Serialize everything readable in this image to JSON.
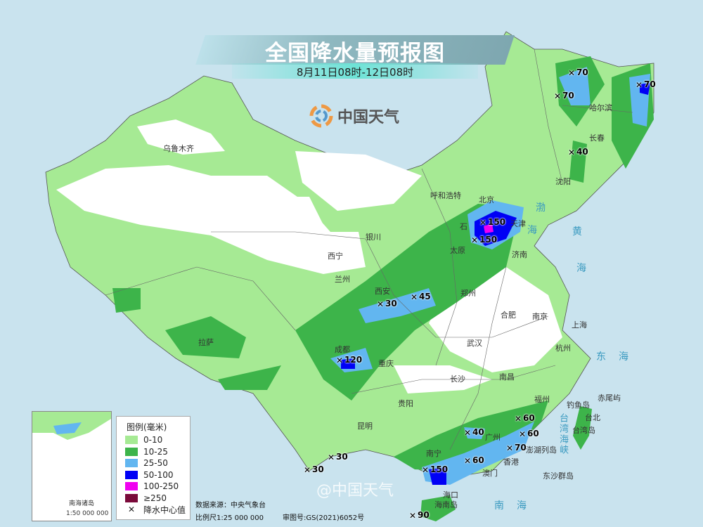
{
  "title": "全国降水量预报图",
  "subtitle": "8月11日08时-12日08时",
  "brand": "中国天气",
  "watermark": "@中国天气",
  "legend": {
    "title": "图例(毫米)",
    "items": [
      {
        "label": "0-10",
        "color": "#a6ea94"
      },
      {
        "label": "10-25",
        "color": "#3db44a"
      },
      {
        "label": "25-50",
        "color": "#62b6f0"
      },
      {
        "label": "50-100",
        "color": "#0000f5"
      },
      {
        "label": "100-250",
        "color": "#f000f0"
      },
      {
        "label": "≥250",
        "color": "#7a0a3a"
      }
    ],
    "center_label": "降水中心值"
  },
  "footer": {
    "source": "数据来源：中央气象台",
    "scale": "比例尺1:25 000 000",
    "approval": "审图号:GS(2021)6052号"
  },
  "inset": {
    "label": "南海诸岛",
    "scale": "1:50 000 000"
  },
  "cities": [
    "乌鲁木齐",
    "呼和浩特",
    "北京",
    "天津",
    "石",
    "太原",
    "济南",
    "银川",
    "西宁",
    "兰州",
    "西安",
    "郑州",
    "合肥",
    "南京",
    "上海",
    "武汉",
    "杭州",
    "成都",
    "重庆",
    "长沙",
    "南昌",
    "贵阳",
    "福州",
    "台北",
    "昆明",
    "南宁",
    "广州",
    "香港",
    "澳门",
    "海口",
    "拉萨",
    "哈尔滨",
    "长春",
    "沈阳",
    "台湾岛",
    "钓鱼岛",
    "赤尾屿",
    "澎湖列岛",
    "东沙群岛",
    "海南岛"
  ],
  "seas": [
    "渤",
    "海",
    "黄",
    "海",
    "东海",
    "台湾海峡",
    "南海"
  ],
  "precip_centers": [
    "70",
    "70",
    "70",
    "40",
    "150",
    "150",
    "45",
    "30",
    "120",
    "40",
    "60",
    "60",
    "70",
    "60",
    "150",
    "30",
    "30",
    "90"
  ]
}
